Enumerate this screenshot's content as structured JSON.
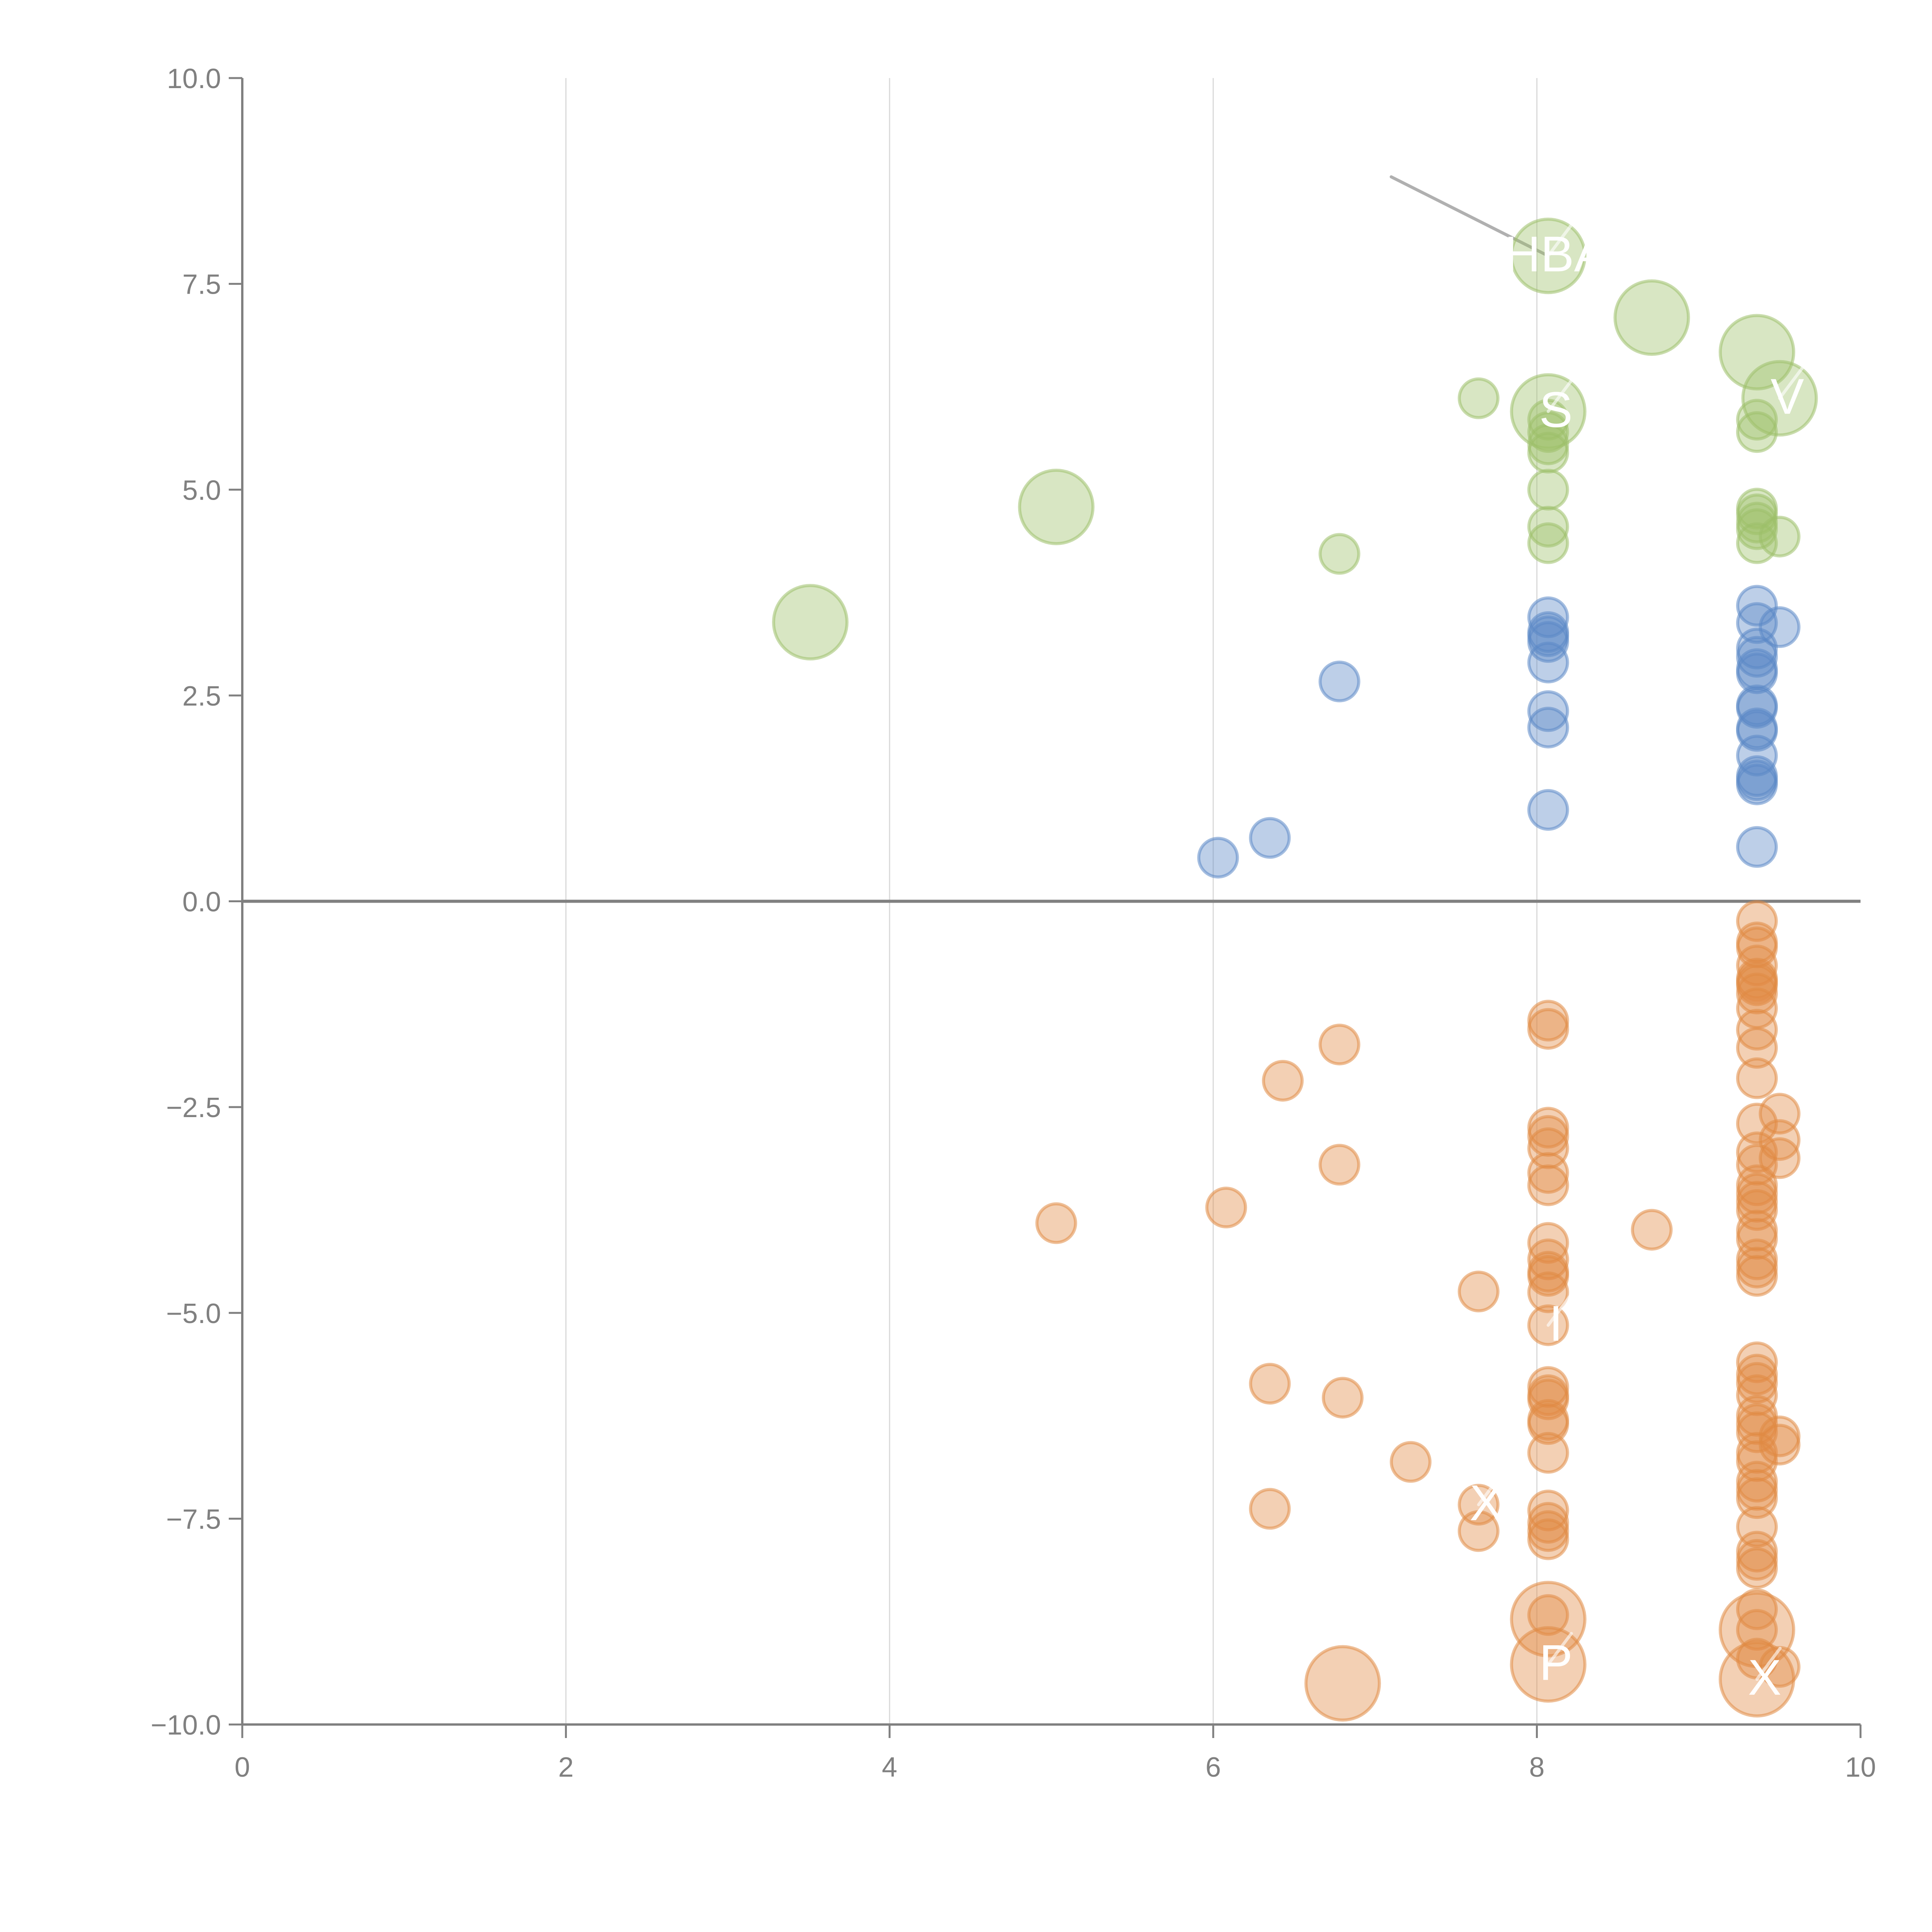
{
  "chart_data": {
    "type": "scatter",
    "title": "",
    "xlabel": "",
    "ylabel": "",
    "xlim": [
      0,
      10
    ],
    "ylim": [
      -10,
      10
    ],
    "grid": "vertical",
    "x_ticks": [
      "0",
      "2",
      "4",
      "6",
      "8",
      "10"
    ],
    "x_tick_values": [
      0,
      2,
      4,
      6,
      8,
      10
    ],
    "y_ticks": [
      "10.0",
      "7.5",
      "5.0",
      "2.5",
      "0.0",
      "−2.5",
      "−5.0",
      "−7.5",
      "−10.0"
    ],
    "y_tick_values": [
      10,
      7.5,
      5,
      2.5,
      0,
      -2.5,
      -5,
      -7.5,
      -10
    ],
    "zero_line": 0,
    "colors": {
      "green": "#9dc06a",
      "blue": "#5b88c6",
      "orange": "#e08a44",
      "axis": "#808080",
      "grid": "#d9d9d9"
    },
    "series": [
      {
        "name": "green",
        "color": "#9dc06a",
        "points": [
          {
            "x": 8.07,
            "y": 7.84,
            "size": "large",
            "label": "HBA"
          },
          {
            "x": 8.71,
            "y": 7.09,
            "size": "large"
          },
          {
            "x": 9.36,
            "y": 6.67,
            "size": "large"
          },
          {
            "x": 9.5,
            "y": 6.11,
            "size": "large",
            "label": "V"
          },
          {
            "x": 8.07,
            "y": 5.95,
            "size": "large",
            "label": "S"
          },
          {
            "x": 7.64,
            "y": 6.11,
            "size": "small"
          },
          {
            "x": 5.03,
            "y": 4.79,
            "size": "large"
          },
          {
            "x": 3.51,
            "y": 3.39,
            "size": "large"
          },
          {
            "x": 6.78,
            "y": 4.22,
            "size": "small"
          },
          {
            "x": 8.07,
            "y": 5.85,
            "size": "small"
          },
          {
            "x": 8.07,
            "y": 5.7,
            "size": "small"
          },
          {
            "x": 8.07,
            "y": 5.55,
            "size": "small"
          },
          {
            "x": 8.07,
            "y": 5.45,
            "size": "small"
          },
          {
            "x": 8.07,
            "y": 5.0,
            "size": "small"
          },
          {
            "x": 8.07,
            "y": 4.55,
            "size": "small"
          },
          {
            "x": 8.07,
            "y": 4.35,
            "size": "small"
          },
          {
            "x": 9.36,
            "y": 5.85,
            "size": "small"
          },
          {
            "x": 9.36,
            "y": 5.7,
            "size": "small"
          },
          {
            "x": 9.36,
            "y": 4.77,
            "size": "small"
          },
          {
            "x": 9.36,
            "y": 4.7,
            "size": "small"
          },
          {
            "x": 9.36,
            "y": 4.6,
            "size": "small"
          },
          {
            "x": 9.36,
            "y": 4.52,
            "size": "small"
          },
          {
            "x": 9.36,
            "y": 4.35,
            "size": "small"
          },
          {
            "x": 9.5,
            "y": 4.43,
            "size": "small"
          }
        ]
      },
      {
        "name": "blue",
        "color": "#5b88c6",
        "points": [
          {
            "x": 8.07,
            "y": 3.45,
            "size": "small"
          },
          {
            "x": 8.07,
            "y": 3.27,
            "size": "small"
          },
          {
            "x": 8.07,
            "y": 3.22,
            "size": "small"
          },
          {
            "x": 8.07,
            "y": 3.15,
            "size": "small"
          },
          {
            "x": 8.07,
            "y": 2.9,
            "size": "small"
          },
          {
            "x": 8.07,
            "y": 2.31,
            "size": "small"
          },
          {
            "x": 8.07,
            "y": 2.11,
            "size": "small"
          },
          {
            "x": 8.07,
            "y": 1.11,
            "size": "small"
          },
          {
            "x": 9.36,
            "y": 3.59,
            "size": "small"
          },
          {
            "x": 9.36,
            "y": 3.38,
            "size": "small"
          },
          {
            "x": 9.36,
            "y": 3.07,
            "size": "small"
          },
          {
            "x": 9.36,
            "y": 2.97,
            "size": "small"
          },
          {
            "x": 9.36,
            "y": 2.82,
            "size": "small"
          },
          {
            "x": 9.36,
            "y": 2.77,
            "size": "small"
          },
          {
            "x": 9.36,
            "y": 2.38,
            "size": "small"
          },
          {
            "x": 9.36,
            "y": 2.35,
            "size": "small"
          },
          {
            "x": 9.36,
            "y": 2.1,
            "size": "small"
          },
          {
            "x": 9.36,
            "y": 2.07,
            "size": "small"
          },
          {
            "x": 9.36,
            "y": 1.77,
            "size": "small"
          },
          {
            "x": 9.36,
            "y": 1.52,
            "size": "small"
          },
          {
            "x": 9.36,
            "y": 1.47,
            "size": "small"
          },
          {
            "x": 9.36,
            "y": 1.42,
            "size": "small"
          },
          {
            "x": 9.36,
            "y": 0.66,
            "size": "small"
          },
          {
            "x": 9.5,
            "y": 3.33,
            "size": "small"
          },
          {
            "x": 6.78,
            "y": 2.67,
            "size": "small"
          },
          {
            "x": 6.35,
            "y": 0.77,
            "size": "small"
          },
          {
            "x": 6.03,
            "y": 0.53,
            "size": "small"
          }
        ]
      },
      {
        "name": "orange",
        "color": "#e08a44",
        "points": [
          {
            "x": 9.36,
            "y": -0.24,
            "size": "small"
          },
          {
            "x": 9.36,
            "y": -0.5,
            "size": "small"
          },
          {
            "x": 9.36,
            "y": -0.56,
            "size": "small"
          },
          {
            "x": 9.36,
            "y": -0.78,
            "size": "small"
          },
          {
            "x": 9.36,
            "y": -0.94,
            "size": "small"
          },
          {
            "x": 9.36,
            "y": -0.98,
            "size": "small"
          },
          {
            "x": 9.36,
            "y": -1.02,
            "size": "small"
          },
          {
            "x": 9.36,
            "y": -1.12,
            "size": "small"
          },
          {
            "x": 9.36,
            "y": -1.3,
            "size": "small"
          },
          {
            "x": 9.36,
            "y": -1.56,
            "size": "small"
          },
          {
            "x": 9.36,
            "y": -1.78,
            "size": "small"
          },
          {
            "x": 9.36,
            "y": -2.15,
            "size": "small"
          },
          {
            "x": 9.36,
            "y": -2.7,
            "size": "small"
          },
          {
            "x": 9.36,
            "y": -3.05,
            "size": "small"
          },
          {
            "x": 9.36,
            "y": -3.2,
            "size": "small"
          },
          {
            "x": 9.36,
            "y": -3.45,
            "size": "small"
          },
          {
            "x": 9.36,
            "y": -3.55,
            "size": "small"
          },
          {
            "x": 9.36,
            "y": -3.65,
            "size": "small"
          },
          {
            "x": 9.36,
            "y": -3.75,
            "size": "small"
          },
          {
            "x": 9.36,
            "y": -4.0,
            "size": "small"
          },
          {
            "x": 9.36,
            "y": -4.1,
            "size": "small"
          },
          {
            "x": 9.36,
            "y": -4.35,
            "size": "small"
          },
          {
            "x": 9.36,
            "y": -4.45,
            "size": "small"
          },
          {
            "x": 9.36,
            "y": -4.55,
            "size": "small"
          },
          {
            "x": 9.5,
            "y": -2.58,
            "size": "small"
          },
          {
            "x": 9.5,
            "y": -2.9,
            "size": "small"
          },
          {
            "x": 9.5,
            "y": -3.12,
            "size": "small"
          },
          {
            "x": 8.07,
            "y": -1.45,
            "size": "small"
          },
          {
            "x": 8.07,
            "y": -1.55,
            "size": "small"
          },
          {
            "x": 8.07,
            "y": -2.75,
            "size": "small"
          },
          {
            "x": 8.07,
            "y": -2.85,
            "size": "small"
          },
          {
            "x": 8.07,
            "y": -3.0,
            "size": "small"
          },
          {
            "x": 8.07,
            "y": -3.3,
            "size": "small"
          },
          {
            "x": 8.07,
            "y": -3.45,
            "size": "small"
          },
          {
            "x": 8.07,
            "y": -4.15,
            "size": "small"
          },
          {
            "x": 8.07,
            "y": -4.35,
            "size": "small"
          },
          {
            "x": 8.07,
            "y": -4.5,
            "size": "small"
          },
          {
            "x": 8.07,
            "y": -4.55,
            "size": "small"
          },
          {
            "x": 8.07,
            "y": -4.75,
            "size": "small"
          },
          {
            "x": 8.07,
            "y": -5.15,
            "size": "small",
            "label": "I"
          },
          {
            "x": 6.78,
            "y": -1.74,
            "size": "small"
          },
          {
            "x": 6.43,
            "y": -2.18,
            "size": "small"
          },
          {
            "x": 6.78,
            "y": -3.2,
            "size": "small"
          },
          {
            "x": 6.08,
            "y": -3.72,
            "size": "small"
          },
          {
            "x": 5.03,
            "y": -3.91,
            "size": "small"
          },
          {
            "x": 8.71,
            "y": -3.99,
            "size": "small"
          },
          {
            "x": 7.64,
            "y": -4.74,
            "size": "small"
          },
          {
            "x": 6.35,
            "y": -5.86,
            "size": "small"
          },
          {
            "x": 6.8,
            "y": -6.03,
            "size": "small"
          },
          {
            "x": 7.22,
            "y": -6.81,
            "size": "small"
          },
          {
            "x": 6.35,
            "y": -7.38,
            "size": "small"
          },
          {
            "x": 7.64,
            "y": -7.33,
            "size": "small",
            "label": "X"
          },
          {
            "x": 7.64,
            "y": -7.65,
            "size": "small"
          },
          {
            "x": 8.07,
            "y": -5.9,
            "size": "small"
          },
          {
            "x": 8.07,
            "y": -6.0,
            "size": "small"
          },
          {
            "x": 8.07,
            "y": -6.05,
            "size": "small"
          },
          {
            "x": 8.07,
            "y": -6.3,
            "size": "small"
          },
          {
            "x": 8.07,
            "y": -6.35,
            "size": "small"
          },
          {
            "x": 8.07,
            "y": -6.7,
            "size": "small"
          },
          {
            "x": 8.07,
            "y": -7.4,
            "size": "small"
          },
          {
            "x": 8.07,
            "y": -7.55,
            "size": "small"
          },
          {
            "x": 8.07,
            "y": -7.65,
            "size": "small"
          },
          {
            "x": 8.07,
            "y": -7.75,
            "size": "small"
          },
          {
            "x": 8.07,
            "y": -8.67,
            "size": "small"
          },
          {
            "x": 8.07,
            "y": -8.72,
            "size": "large"
          },
          {
            "x": 8.07,
            "y": -9.27,
            "size": "large",
            "label": "P"
          },
          {
            "x": 6.8,
            "y": -9.5,
            "size": "large"
          },
          {
            "x": 9.36,
            "y": -5.6,
            "size": "small"
          },
          {
            "x": 9.36,
            "y": -5.75,
            "size": "small"
          },
          {
            "x": 9.36,
            "y": -5.85,
            "size": "small"
          },
          {
            "x": 9.36,
            "y": -6.0,
            "size": "small"
          },
          {
            "x": 9.36,
            "y": -6.25,
            "size": "small"
          },
          {
            "x": 9.36,
            "y": -6.35,
            "size": "small"
          },
          {
            "x": 9.36,
            "y": -6.45,
            "size": "small"
          },
          {
            "x": 9.36,
            "y": -6.7,
            "size": "small"
          },
          {
            "x": 9.36,
            "y": -6.8,
            "size": "small"
          },
          {
            "x": 9.36,
            "y": -7.05,
            "size": "small"
          },
          {
            "x": 9.36,
            "y": -7.15,
            "size": "small"
          },
          {
            "x": 9.36,
            "y": -7.25,
            "size": "small"
          },
          {
            "x": 9.36,
            "y": -7.6,
            "size": "small"
          },
          {
            "x": 9.36,
            "y": -7.9,
            "size": "small"
          },
          {
            "x": 9.36,
            "y": -8.0,
            "size": "small"
          },
          {
            "x": 9.36,
            "y": -8.1,
            "size": "small"
          },
          {
            "x": 9.36,
            "y": -8.6,
            "size": "small"
          },
          {
            "x": 9.36,
            "y": -8.85,
            "size": "small"
          },
          {
            "x": 9.36,
            "y": -8.85,
            "size": "large"
          },
          {
            "x": 9.36,
            "y": -9.2,
            "size": "small"
          },
          {
            "x": 9.36,
            "y": -9.45,
            "size": "large",
            "label": "X"
          },
          {
            "x": 9.5,
            "y": -6.5,
            "size": "small"
          },
          {
            "x": 9.5,
            "y": -6.6,
            "size": "small"
          },
          {
            "x": 9.5,
            "y": -9.3,
            "size": "small"
          }
        ]
      }
    ],
    "annotation_line": {
      "from": {
        "x": 7.1,
        "y": 8.8
      },
      "to": {
        "x": 8.07,
        "y": 7.84
      }
    }
  }
}
